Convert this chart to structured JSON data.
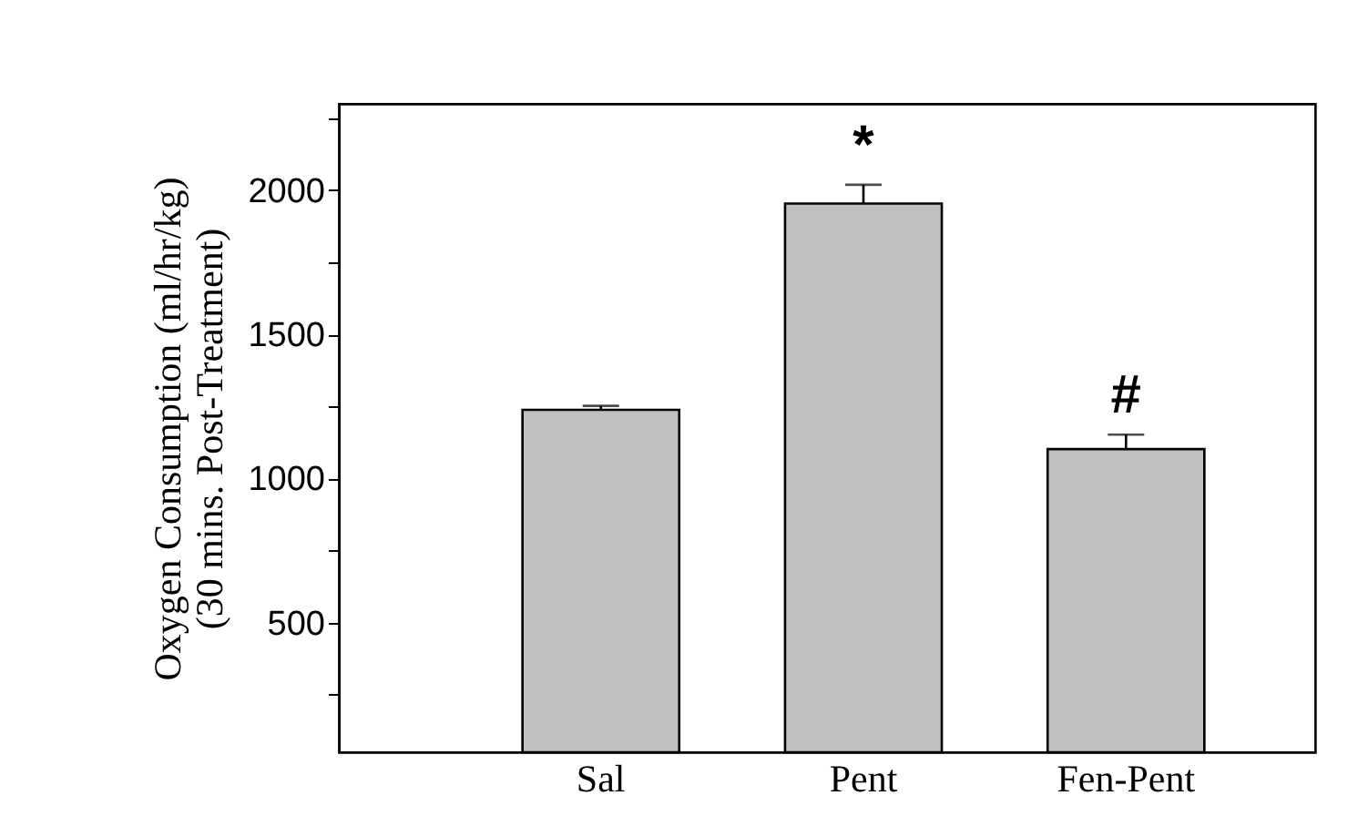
{
  "chart_data": {
    "type": "bar",
    "ylabel": "Oxygen Consumption (ml/hr/kg)\n(30 mins. Post-Treatment)",
    "categories": [
      "Sal",
      "Pent",
      "Fen-Pent"
    ],
    "values": [
      1238,
      1954,
      1102
    ],
    "errors": [
      [
        1238,
        1252
      ],
      [
        1954,
        2019
      ],
      [
        1102,
        1152
      ]
    ],
    "color": "#c0c0c0",
    "ylim": [
      50,
      2300
    ],
    "yticks": [
      {
        "value": 250,
        "label": null
      },
      500,
      {
        "value": 750,
        "label": null
      },
      1000,
      {
        "value": 1250,
        "label": null
      },
      1500,
      {
        "value": 1750,
        "label": null
      },
      2000,
      {
        "value": 2250,
        "label": null
      }
    ],
    "annotations": [
      {
        "text": "*",
        "x": "Pent",
        "y": 2019
      },
      {
        "text": "#",
        "x": "Fen-Pent",
        "y": 1152
      }
    ],
    "grid": false
  }
}
